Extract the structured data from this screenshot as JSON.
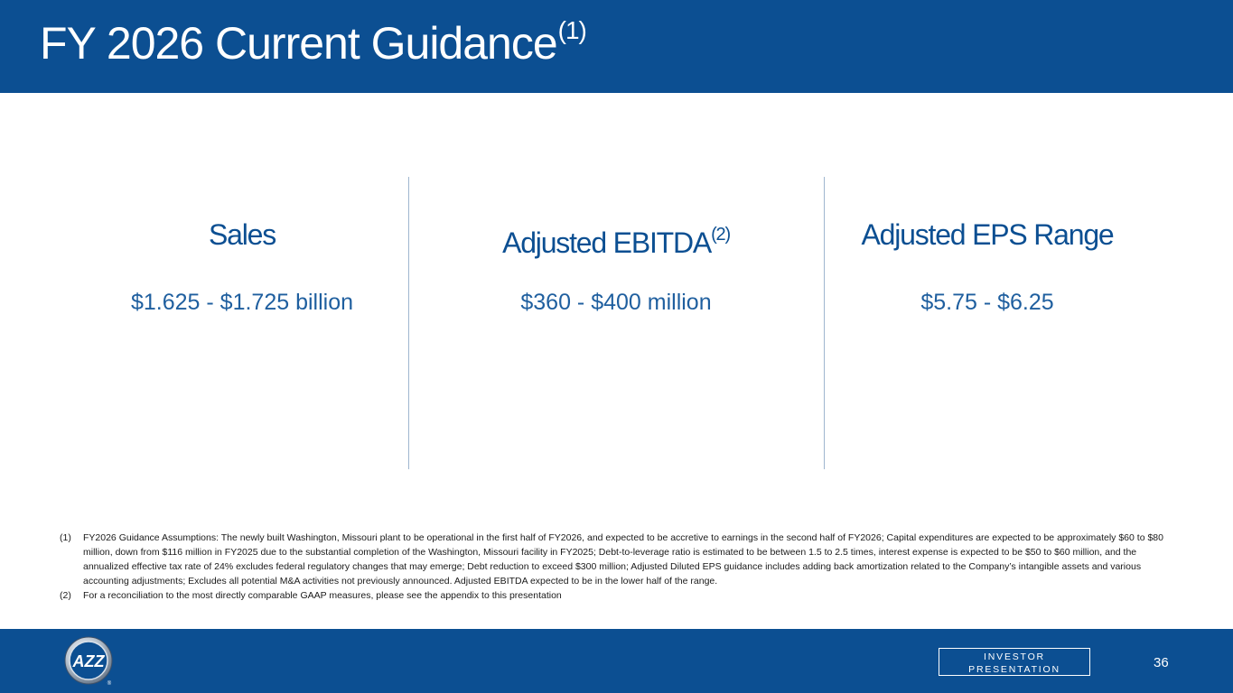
{
  "slide": {
    "title": "FY 2026 Current Guidance",
    "title_superscript": "(1)"
  },
  "metrics": [
    {
      "label": "Sales",
      "superscript": "",
      "value": "$1.625 - $1.725 billion"
    },
    {
      "label": "Adjusted EBITDA",
      "superscript": "(2)",
      "value": "$360 - $400 million"
    },
    {
      "label": "Adjusted EPS Range",
      "superscript": "",
      "value": "$5.75 - $6.25"
    }
  ],
  "footnotes": [
    {
      "marker": "(1)",
      "text": "FY2026 Guidance Assumptions: The newly built Washington, Missouri plant to be operational in the first half of FY2026, and expected to be accretive to earnings in the second half of FY2026; Capital expenditures are expected to be approximately $60 to $80 million, down from $116 million in FY2025 due to the substantial completion of the Washington, Missouri facility in FY2025; Debt-to-leverage ratio is estimated to be between 1.5 to 2.5 times, interest expense is expected to be $50 to $60 million, and the annualized effective tax rate of 24% excludes federal regulatory changes that may emerge; Debt reduction to exceed $300 million; Adjusted Diluted EPS guidance includes adding back amortization related to the Company’s intangible assets and various accounting adjustments; Excludes all potential M&A activities not previously announced.  Adjusted EBITDA expected to be in the lower half of the range."
    },
    {
      "marker": "(2)",
      "text": "For a reconciliation to the most directly comparable GAAP measures, please see the appendix to this presentation"
    }
  ],
  "footer": {
    "badge_line1": "INVESTOR",
    "badge_line2": "PRESENTATION",
    "page_number": "36",
    "logo_text": "AZZ",
    "logo_mark": "®"
  },
  "colors": {
    "brand_blue": "#0c4f92",
    "value_blue": "#1f5f9f",
    "divider": "#9fb6cf"
  }
}
